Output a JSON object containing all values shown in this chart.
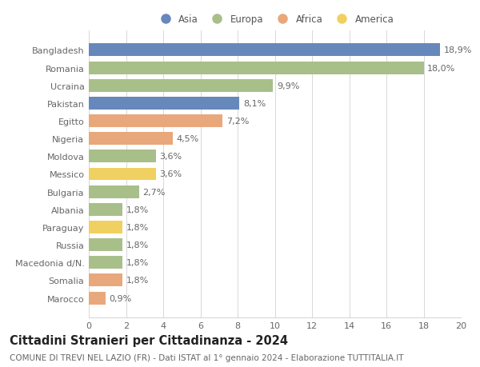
{
  "categories": [
    "Marocco",
    "Somalia",
    "Macedonia d/N.",
    "Russia",
    "Paraguay",
    "Albania",
    "Bulgaria",
    "Messico",
    "Moldova",
    "Nigeria",
    "Egitto",
    "Pakistan",
    "Ucraina",
    "Romania",
    "Bangladesh"
  ],
  "values": [
    0.9,
    1.8,
    1.8,
    1.8,
    1.8,
    1.8,
    2.7,
    3.6,
    3.6,
    4.5,
    7.2,
    8.1,
    9.9,
    18.0,
    18.9
  ],
  "labels": [
    "0,9%",
    "1,8%",
    "1,8%",
    "1,8%",
    "1,8%",
    "1,8%",
    "2,7%",
    "3,6%",
    "3,6%",
    "4,5%",
    "7,2%",
    "8,1%",
    "9,9%",
    "18,0%",
    "18,9%"
  ],
  "colors": [
    "#e8a87c",
    "#e8a87c",
    "#a8bf8a",
    "#a8bf8a",
    "#f0d060",
    "#a8bf8a",
    "#a8bf8a",
    "#f0d060",
    "#a8bf8a",
    "#e8a87c",
    "#e8a87c",
    "#6688bb",
    "#a8bf8a",
    "#a8bf8a",
    "#6688bb"
  ],
  "legend": [
    {
      "label": "Asia",
      "color": "#6688bb"
    },
    {
      "label": "Europa",
      "color": "#a8bf8a"
    },
    {
      "label": "Africa",
      "color": "#e8a87c"
    },
    {
      "label": "America",
      "color": "#f0d060"
    }
  ],
  "title": "Cittadini Stranieri per Cittadinanza - 2024",
  "subtitle": "COMUNE DI TREVI NEL LAZIO (FR) - Dati ISTAT al 1° gennaio 2024 - Elaborazione TUTTITALIA.IT",
  "xlim": [
    0,
    20
  ],
  "xticks": [
    0,
    2,
    4,
    6,
    8,
    10,
    12,
    14,
    16,
    18,
    20
  ],
  "background_color": "#ffffff",
  "grid_color": "#d8d8d8",
  "bar_height": 0.72,
  "label_fontsize": 8,
  "tick_fontsize": 8,
  "title_fontsize": 10.5,
  "subtitle_fontsize": 7.5
}
